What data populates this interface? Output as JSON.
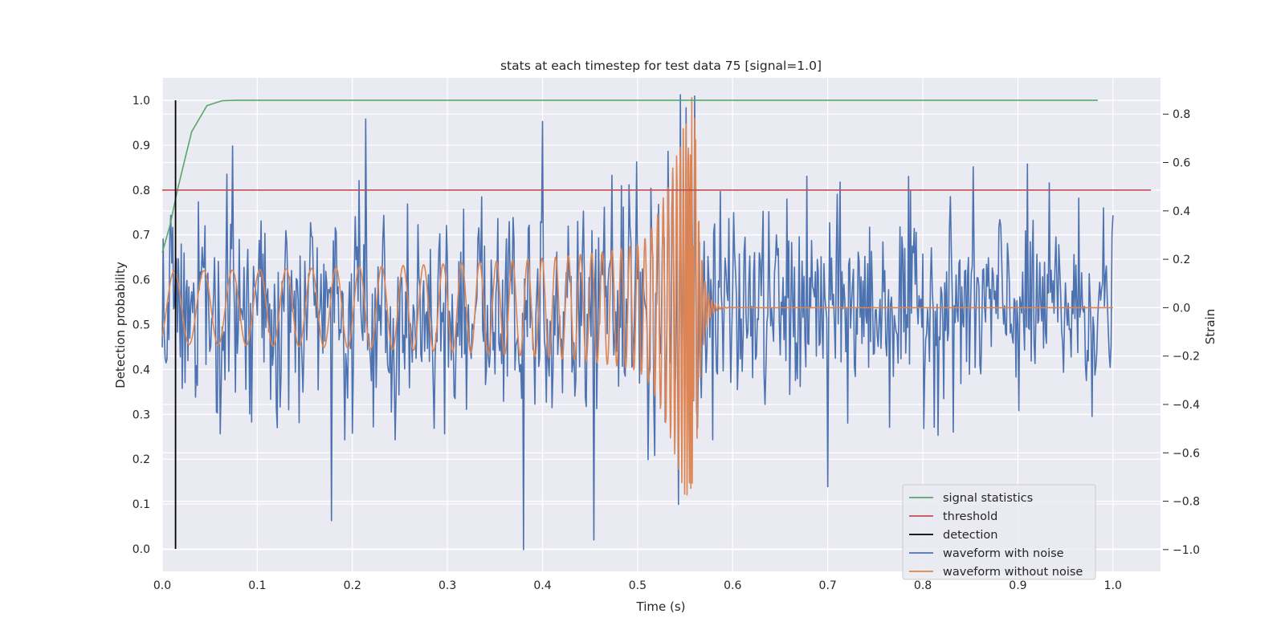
{
  "chart_data": {
    "type": "line",
    "title": "stats at each timestep for test data 75 [signal=1.0]",
    "xlabel": "Time (s)",
    "ylabel": "Detection probability",
    "y2label": "Strain",
    "xlim": [
      0.0,
      1.05
    ],
    "ylim": [
      -0.05,
      1.05
    ],
    "y2lim": [
      -1.09,
      0.95
    ],
    "xticks": [
      "0.0",
      "0.1",
      "0.2",
      "0.3",
      "0.4",
      "0.5",
      "0.6",
      "0.7",
      "0.8",
      "0.9",
      "1.0"
    ],
    "yticks": [
      "0.0",
      "0.1",
      "0.2",
      "0.3",
      "0.4",
      "0.5",
      "0.6",
      "0.7",
      "0.8",
      "0.9",
      "1.0"
    ],
    "y2ticks": [
      "−1.0",
      "−0.8",
      "−0.6",
      "−0.4",
      "−0.2",
      "0.0",
      "0.2",
      "0.4",
      "0.6",
      "0.8"
    ],
    "grid": true,
    "legend_position": "lower-right",
    "colors": {
      "signal_statistics": "#55a868",
      "threshold": "#c44e52",
      "detection": "#000000",
      "waveform_with_noise": "#4c72b0",
      "waveform_without_noise": "#dd8452",
      "axes_background": "#eaeaf2",
      "grid": "#ffffff"
    },
    "series": [
      {
        "name": "signal statistics",
        "axis": "left",
        "x": [
          0.0,
          0.008,
          0.016,
          0.024,
          0.031,
          0.047,
          0.063,
          0.078,
          0.094,
          0.2,
          0.4,
          0.6,
          0.8,
          0.984
        ],
        "values": [
          0.66,
          0.72,
          0.8,
          0.87,
          0.93,
          0.988,
          0.999,
          1.0,
          1.0,
          1.0,
          1.0,
          1.0,
          1.0,
          1.0
        ]
      },
      {
        "name": "threshold",
        "axis": "left",
        "x": [
          0.0,
          1.04
        ],
        "values": [
          0.8,
          0.8
        ]
      },
      {
        "name": "detection",
        "axis": "left",
        "x": [
          0.014,
          0.014
        ],
        "values": [
          0.0,
          1.0
        ]
      },
      {
        "name": "waveform with noise",
        "axis": "right",
        "description_free": true,
        "x_range": [
          0.0,
          1.0
        ],
        "noise_sigma": 0.2,
        "peaks": [
          {
            "x": 0.214,
            "value": 0.78
          },
          {
            "x": 0.4,
            "value": 0.77
          },
          {
            "x": 0.38,
            "value": -1.0
          },
          {
            "x": 0.178,
            "value": -0.88
          },
          {
            "x": 0.454,
            "value": -0.96
          },
          {
            "x": 0.7,
            "value": -0.74
          }
        ]
      },
      {
        "name": "waveform without noise",
        "axis": "right",
        "x_range": [
          0.0,
          1.0
        ],
        "merger_time": 0.56,
        "peak_amplitude": 0.86,
        "initial_amplitude": 0.15
      }
    ],
    "legend": [
      "signal statistics",
      "threshold",
      "detection",
      "waveform with noise",
      "waveform without noise"
    ]
  }
}
